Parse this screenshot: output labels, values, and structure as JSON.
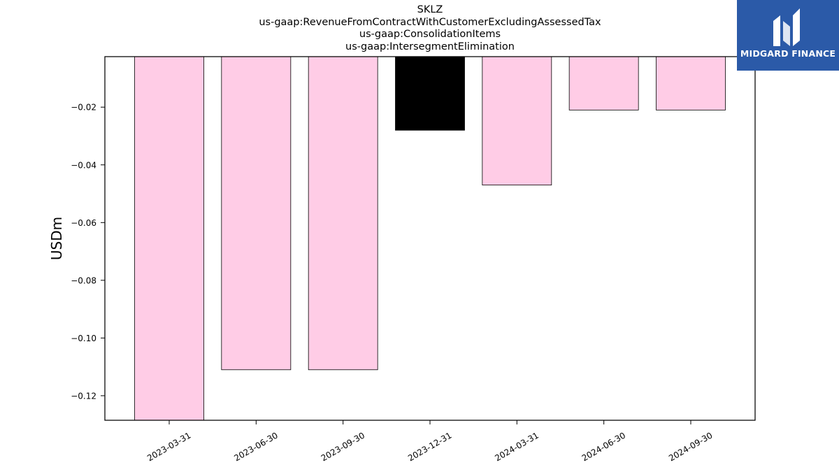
{
  "chart_data": {
    "type": "bar",
    "title": [
      "SKLZ",
      "us-gaap:RevenueFromContractWithCustomerExcludingAssessedTax",
      "us-gaap:ConsolidationItems",
      "us-gaap:IntersegmentElimination"
    ],
    "xlabel": "",
    "ylabel": "USDm",
    "categories": [
      "2023-03-31",
      "2023-06-30",
      "2023-09-30",
      "2023-12-31",
      "2024-03-31",
      "2024-06-30",
      "2024-09-30"
    ],
    "values": [
      -0.129,
      -0.111,
      -0.111,
      -0.028,
      -0.047,
      -0.021,
      -0.021
    ],
    "bar_colors": [
      "#ffccE6",
      "#ffccE6",
      "#ffccE6",
      "#000000",
      "#ffccE6",
      "#ffccE6",
      "#ffccE6"
    ],
    "bar_edge_color": "#000000",
    "ylim": [
      -0.1285,
      -0.0025
    ],
    "yticks": [
      -0.12,
      -0.1,
      -0.08,
      -0.06,
      -0.04,
      -0.02
    ],
    "ytick_labels": [
      "−0.12",
      "−0.10",
      "−0.08",
      "−0.06",
      "−0.04",
      "−0.02"
    ],
    "grid": false,
    "legend": "none"
  },
  "logo": {
    "text": "MIDGARD FINANCE",
    "background": "#2b5aa8",
    "icon": "midgard-m-logo-icon"
  }
}
